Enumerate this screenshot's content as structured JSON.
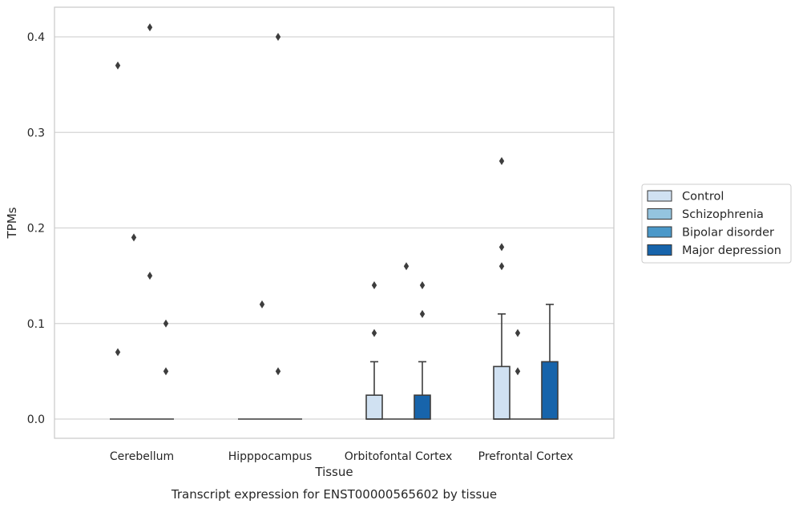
{
  "chart_data": {
    "type": "box",
    "xlabel": "Tissue",
    "ylabel": "TPMs",
    "caption": "Transcript expression for ENST00000565602 by tissue",
    "ylim": [
      -0.02,
      0.43
    ],
    "yticks": [
      "0.0",
      "0.1",
      "0.2",
      "0.3",
      "0.4"
    ],
    "ytick_values": [
      0.0,
      0.1,
      0.2,
      0.3,
      0.4
    ],
    "grid": "horizontal",
    "legend_position": "right",
    "categories": [
      "Cerebellum",
      "Hipppocampus",
      "Orbitofontal Cortex",
      "Prefrontal Cortex"
    ],
    "series": [
      {
        "name": "Control",
        "color": "#d0e1f2",
        "boxes": [
          {
            "q1": 0,
            "median": 0,
            "q3": 0,
            "whisker_low": 0,
            "whisker_high": 0,
            "outliers": [
              0.37,
              0.07
            ]
          },
          {
            "q1": 0,
            "median": 0,
            "q3": 0,
            "whisker_low": 0,
            "whisker_high": 0,
            "outliers": []
          },
          {
            "q1": 0,
            "median": 0,
            "q3": 0.025,
            "whisker_low": 0,
            "whisker_high": 0.06,
            "outliers": [
              0.14,
              0.09
            ]
          },
          {
            "q1": 0,
            "median": 0,
            "q3": 0.055,
            "whisker_low": 0,
            "whisker_high": 0.11,
            "outliers": [
              0.27,
              0.18,
              0.16
            ]
          }
        ]
      },
      {
        "name": "Schizophrenia",
        "color": "#94c4df",
        "boxes": [
          {
            "q1": 0,
            "median": 0,
            "q3": 0,
            "whisker_low": 0,
            "whisker_high": 0,
            "outliers": [
              0.19
            ]
          },
          {
            "q1": 0,
            "median": 0,
            "q3": 0,
            "whisker_low": 0,
            "whisker_high": 0,
            "outliers": [
              0.12
            ]
          },
          {
            "q1": 0,
            "median": 0,
            "q3": 0,
            "whisker_low": 0,
            "whisker_high": 0,
            "outliers": []
          },
          {
            "q1": 0,
            "median": 0,
            "q3": 0,
            "whisker_low": 0,
            "whisker_high": 0,
            "outliers": [
              0.09,
              0.05
            ]
          }
        ]
      },
      {
        "name": "Bipolar disorder",
        "color": "#4a98c9",
        "boxes": [
          {
            "q1": 0,
            "median": 0,
            "q3": 0,
            "whisker_low": 0,
            "whisker_high": 0,
            "outliers": [
              0.41,
              0.15
            ]
          },
          {
            "q1": 0,
            "median": 0,
            "q3": 0,
            "whisker_low": 0,
            "whisker_high": 0,
            "outliers": [
              0.4,
              0.05
            ]
          },
          {
            "q1": 0,
            "median": 0,
            "q3": 0,
            "whisker_low": 0,
            "whisker_high": 0,
            "outliers": [
              0.16
            ]
          },
          {
            "q1": 0,
            "median": 0,
            "q3": 0,
            "whisker_low": 0,
            "whisker_high": 0,
            "outliers": []
          }
        ]
      },
      {
        "name": "Major depression",
        "color": "#1764ab",
        "boxes": [
          {
            "q1": 0,
            "median": 0,
            "q3": 0,
            "whisker_low": 0,
            "whisker_high": 0,
            "outliers": [
              0.1,
              0.05
            ]
          },
          {
            "q1": 0,
            "median": 0,
            "q3": 0,
            "whisker_low": 0,
            "whisker_high": 0,
            "outliers": []
          },
          {
            "q1": 0,
            "median": 0,
            "q3": 0.025,
            "whisker_low": 0,
            "whisker_high": 0.06,
            "outliers": [
              0.14,
              0.11
            ]
          },
          {
            "q1": 0,
            "median": 0,
            "q3": 0.06,
            "whisker_low": 0,
            "whisker_high": 0.12,
            "outliers": []
          }
        ]
      }
    ]
  }
}
